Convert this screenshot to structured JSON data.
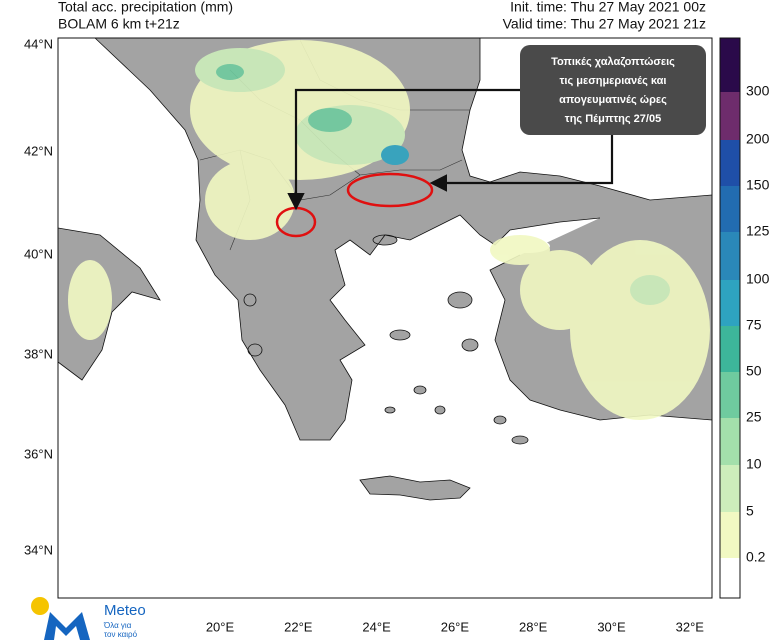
{
  "header": {
    "title_line1": "Total acc. precipitation (mm)",
    "title_line2": "BOLAM 6 km t+21z",
    "init_time": "Init. time: Thu 27 May 2021 00z",
    "valid_time": "Valid time: Thu 27 May 2021 21z"
  },
  "map": {
    "lat_labels": [
      "44°N",
      "42°N",
      "40°N",
      "38°N",
      "36°N",
      "34°N"
    ],
    "lon_labels": [
      "20°E",
      "22°E",
      "24°E",
      "26°E",
      "28°E",
      "30°E",
      "32°E"
    ]
  },
  "colorbar": {
    "labels": [
      "0.2",
      "5",
      "10",
      "25",
      "50",
      "75",
      "100",
      "125",
      "150",
      "200",
      "300"
    ],
    "colors": [
      "#ffffff",
      "#f1f8c2",
      "#cdeebb",
      "#a3dfab",
      "#6fcb9f",
      "#3db69a",
      "#2ea3c0",
      "#2a88b9",
      "#226cb1",
      "#1f4fa8",
      "#6e2c6c",
      "#2a0a4a"
    ]
  },
  "annotation": {
    "text_lines": [
      "Τοπικές χαλαζοπτώσεις",
      "τις μεσημεριανές και",
      "απογευματινές ώρες",
      "της Πέμπτης 27/05"
    ]
  },
  "logo": {
    "name": "Meteo",
    "tagline_lines": [
      "Όλα για",
      "τον καιρό"
    ]
  }
}
